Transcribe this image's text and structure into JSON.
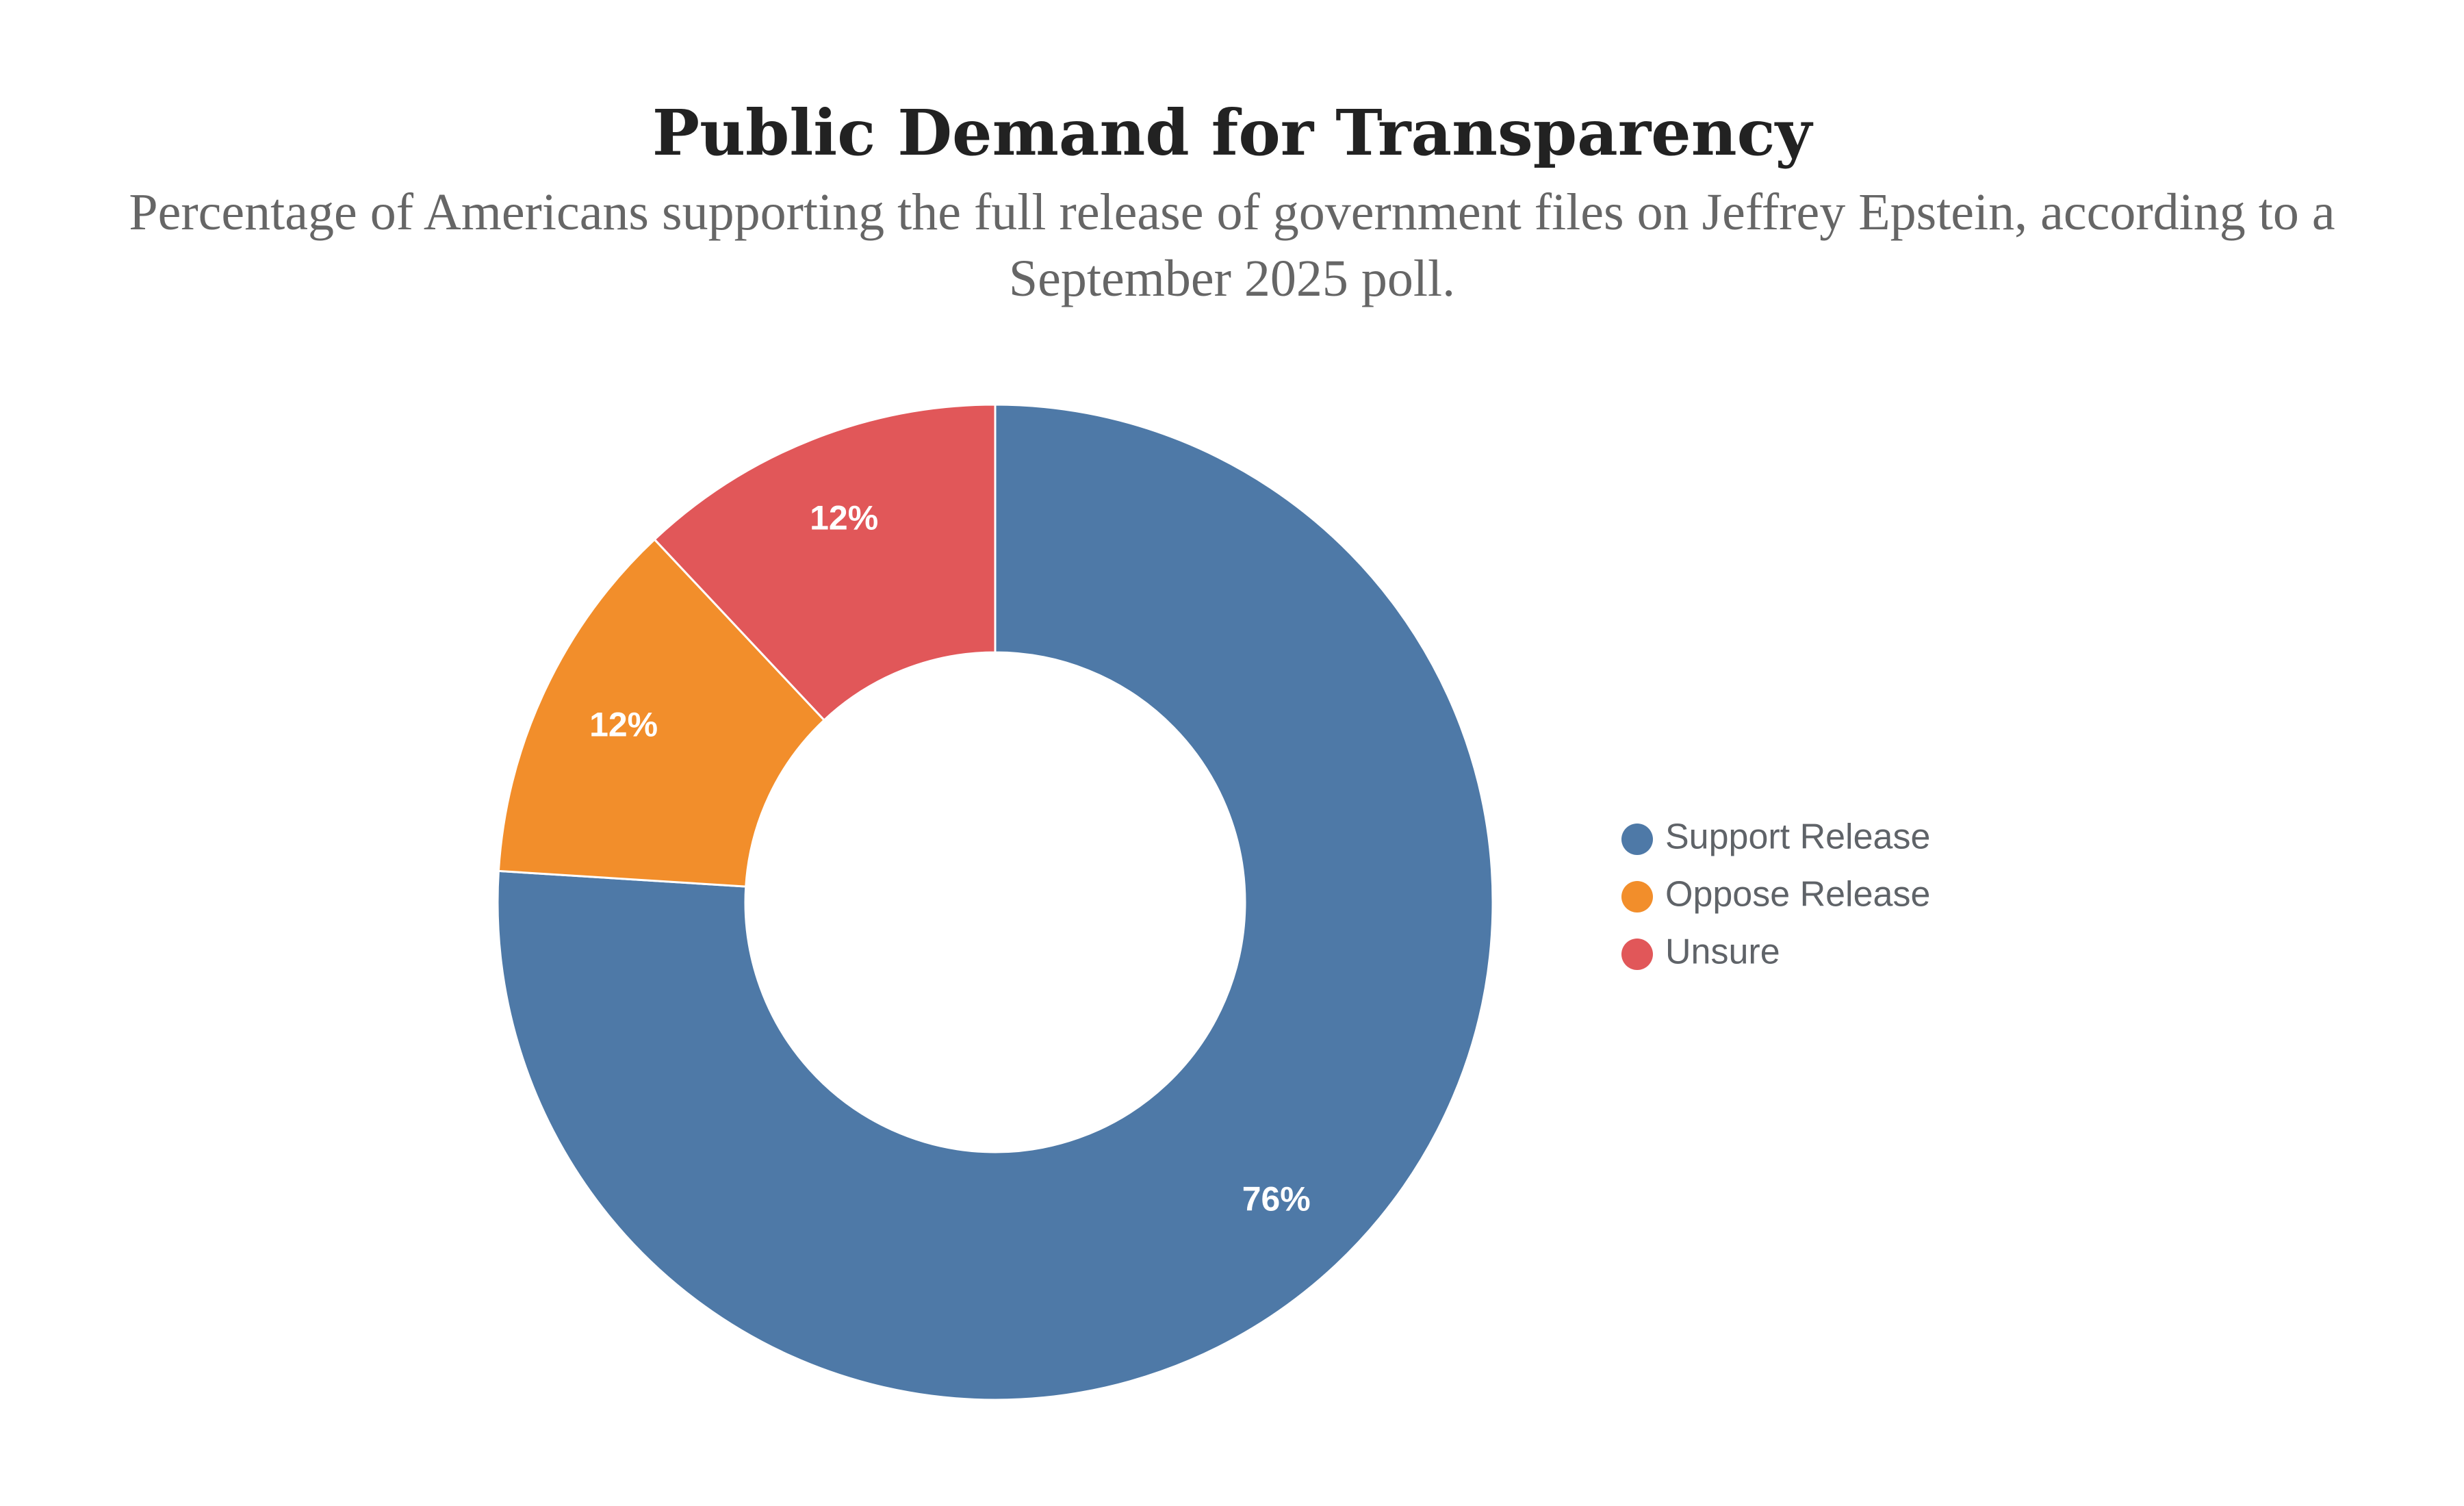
{
  "chart_data": {
    "type": "pie",
    "variant": "donut",
    "title": "Public Demand for Transparency",
    "subtitle": "Percentage of Americans supporting the full release of government files on Jeffrey Epstein, according to a September 2025 poll.",
    "categories": [
      "Support Release",
      "Oppose Release",
      "Unsure"
    ],
    "values": [
      76,
      12,
      12
    ],
    "labels": [
      "76%",
      "12%",
      "12%"
    ],
    "colors": [
      "#4e79a7",
      "#f28e2b",
      "#e15759"
    ],
    "legend_position": "right"
  }
}
